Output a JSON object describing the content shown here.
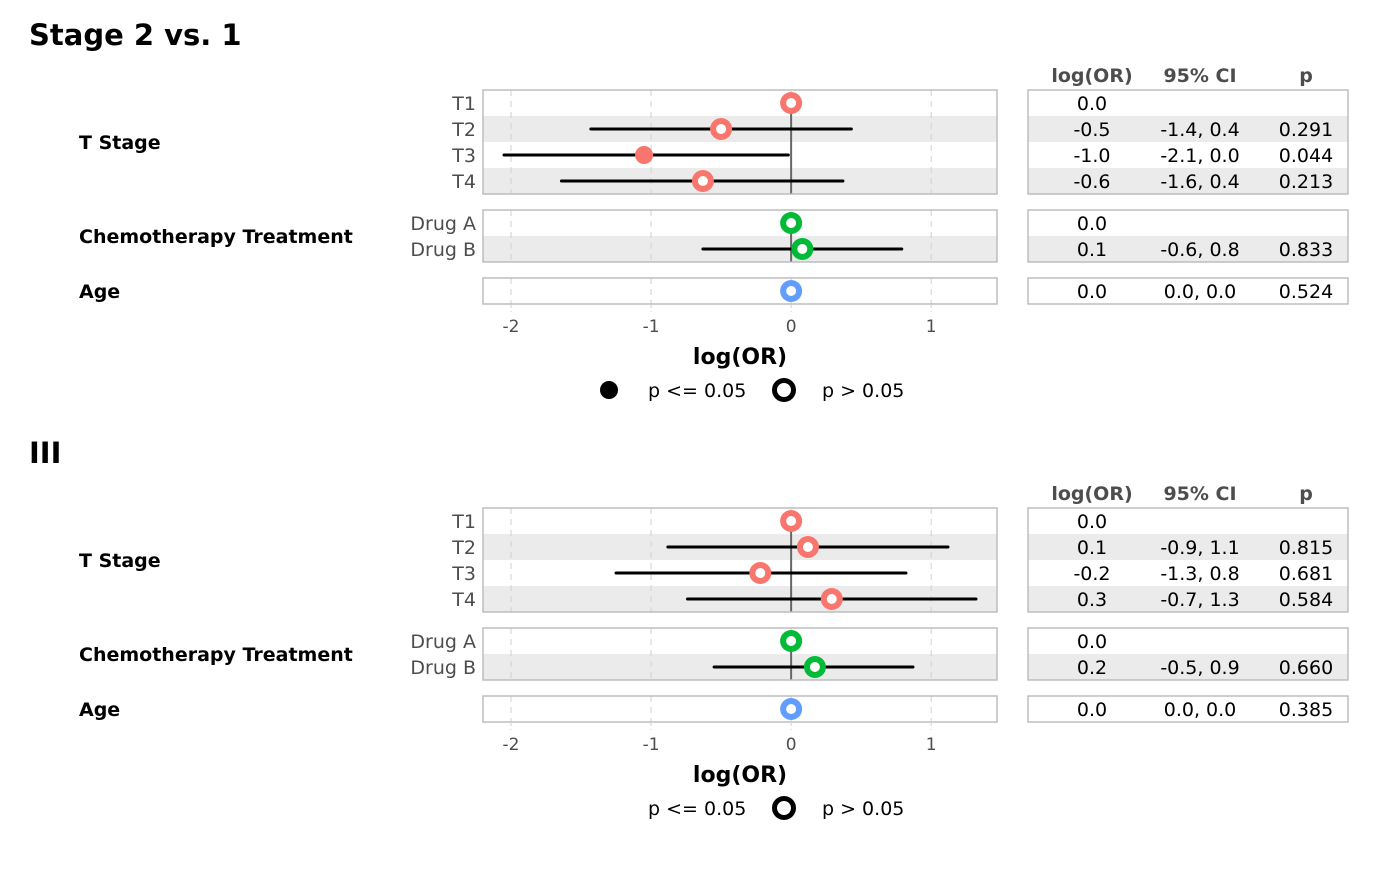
{
  "chart_data": [
    {
      "type": "forest",
      "title": "Stage 2 vs. 1",
      "xlabel": "log(OR)",
      "xlim": [
        -2.2,
        1.47
      ],
      "xticks": [
        "-2",
        "-1",
        "0",
        "1"
      ],
      "grid": true,
      "legend": {
        "position": "bottom",
        "entries": [
          "p <= 0.05",
          "p > 0.05"
        ],
        "show_filled_marker": true
      },
      "table_headers": [
        "log(OR)",
        "95% CI",
        "p"
      ],
      "groups": [
        {
          "label": "T Stage",
          "color": "#F8766D",
          "rows": [
            {
              "label": "T1",
              "est": 0,
              "lo": null,
              "hi": null,
              "sig": false,
              "est_text": "0.0",
              "ci_text": "",
              "p_text": ""
            },
            {
              "label": "T2",
              "est": -0.5,
              "lo": -1.43,
              "hi": 0.43,
              "sig": false,
              "est_text": "-0.5",
              "ci_text": "-1.4, 0.4",
              "p_text": "0.291"
            },
            {
              "label": "T3",
              "est": -1.05,
              "lo": -2.05,
              "hi": -0.02,
              "sig": true,
              "est_text": "-1.0",
              "ci_text": "-2.1, 0.0",
              "p_text": "0.044"
            },
            {
              "label": "T4",
              "est": -0.63,
              "lo": -1.64,
              "hi": 0.37,
              "sig": false,
              "est_text": "-0.6",
              "ci_text": "-1.6, 0.4",
              "p_text": "0.213"
            }
          ]
        },
        {
          "label": "Chemotherapy Treatment",
          "color": "#00BA38",
          "rows": [
            {
              "label": "Drug A",
              "est": 0,
              "lo": null,
              "hi": null,
              "sig": false,
              "est_text": "0.0",
              "ci_text": "",
              "p_text": ""
            },
            {
              "label": "Drug B",
              "est": 0.08,
              "lo": -0.63,
              "hi": 0.79,
              "sig": false,
              "est_text": "0.1",
              "ci_text": "-0.6, 0.8",
              "p_text": "0.833"
            }
          ]
        },
        {
          "label": "Age",
          "color": "#619CFF",
          "rows": [
            {
              "label": "",
              "est": 0,
              "lo": null,
              "hi": null,
              "sig": false,
              "est_text": "0.0",
              "ci_text": "0.0, 0.0",
              "p_text": "0.524"
            }
          ]
        }
      ]
    },
    {
      "type": "forest",
      "title": "III",
      "xlabel": "log(OR)",
      "xlim": [
        -2.2,
        1.47
      ],
      "xticks": [
        "-2",
        "-1",
        "0",
        "1"
      ],
      "grid": true,
      "legend": {
        "position": "bottom",
        "entries": [
          "p <= 0.05",
          "p > 0.05"
        ],
        "show_filled_marker": false
      },
      "table_headers": [
        "log(OR)",
        "95% CI",
        "p"
      ],
      "groups": [
        {
          "label": "T Stage",
          "color": "#F8766D",
          "rows": [
            {
              "label": "T1",
              "est": 0,
              "lo": null,
              "hi": null,
              "sig": false,
              "est_text": "0.0",
              "ci_text": "",
              "p_text": ""
            },
            {
              "label": "T2",
              "est": 0.12,
              "lo": -0.88,
              "hi": 1.12,
              "sig": false,
              "est_text": "0.1",
              "ci_text": "-0.9, 1.1",
              "p_text": "0.815"
            },
            {
              "label": "T3",
              "est": -0.22,
              "lo": -1.25,
              "hi": 0.82,
              "sig": false,
              "est_text": "-0.2",
              "ci_text": "-1.3, 0.8",
              "p_text": "0.681"
            },
            {
              "label": "T4",
              "est": 0.29,
              "lo": -0.74,
              "hi": 1.32,
              "sig": false,
              "est_text": "0.3",
              "ci_text": "-0.7, 1.3",
              "p_text": "0.584"
            }
          ]
        },
        {
          "label": "Chemotherapy Treatment",
          "color": "#00BA38",
          "rows": [
            {
              "label": "Drug A",
              "est": 0,
              "lo": null,
              "hi": null,
              "sig": false,
              "est_text": "0.0",
              "ci_text": "",
              "p_text": ""
            },
            {
              "label": "Drug B",
              "est": 0.17,
              "lo": -0.55,
              "hi": 0.87,
              "sig": false,
              "est_text": "0.2",
              "ci_text": "-0.5, 0.9",
              "p_text": "0.660"
            }
          ]
        },
        {
          "label": "Age",
          "color": "#619CFF",
          "rows": [
            {
              "label": "",
              "est": 0,
              "lo": null,
              "hi": null,
              "sig": false,
              "est_text": "0.0",
              "ci_text": "0.0, 0.0",
              "p_text": "0.385"
            }
          ]
        }
      ]
    }
  ]
}
